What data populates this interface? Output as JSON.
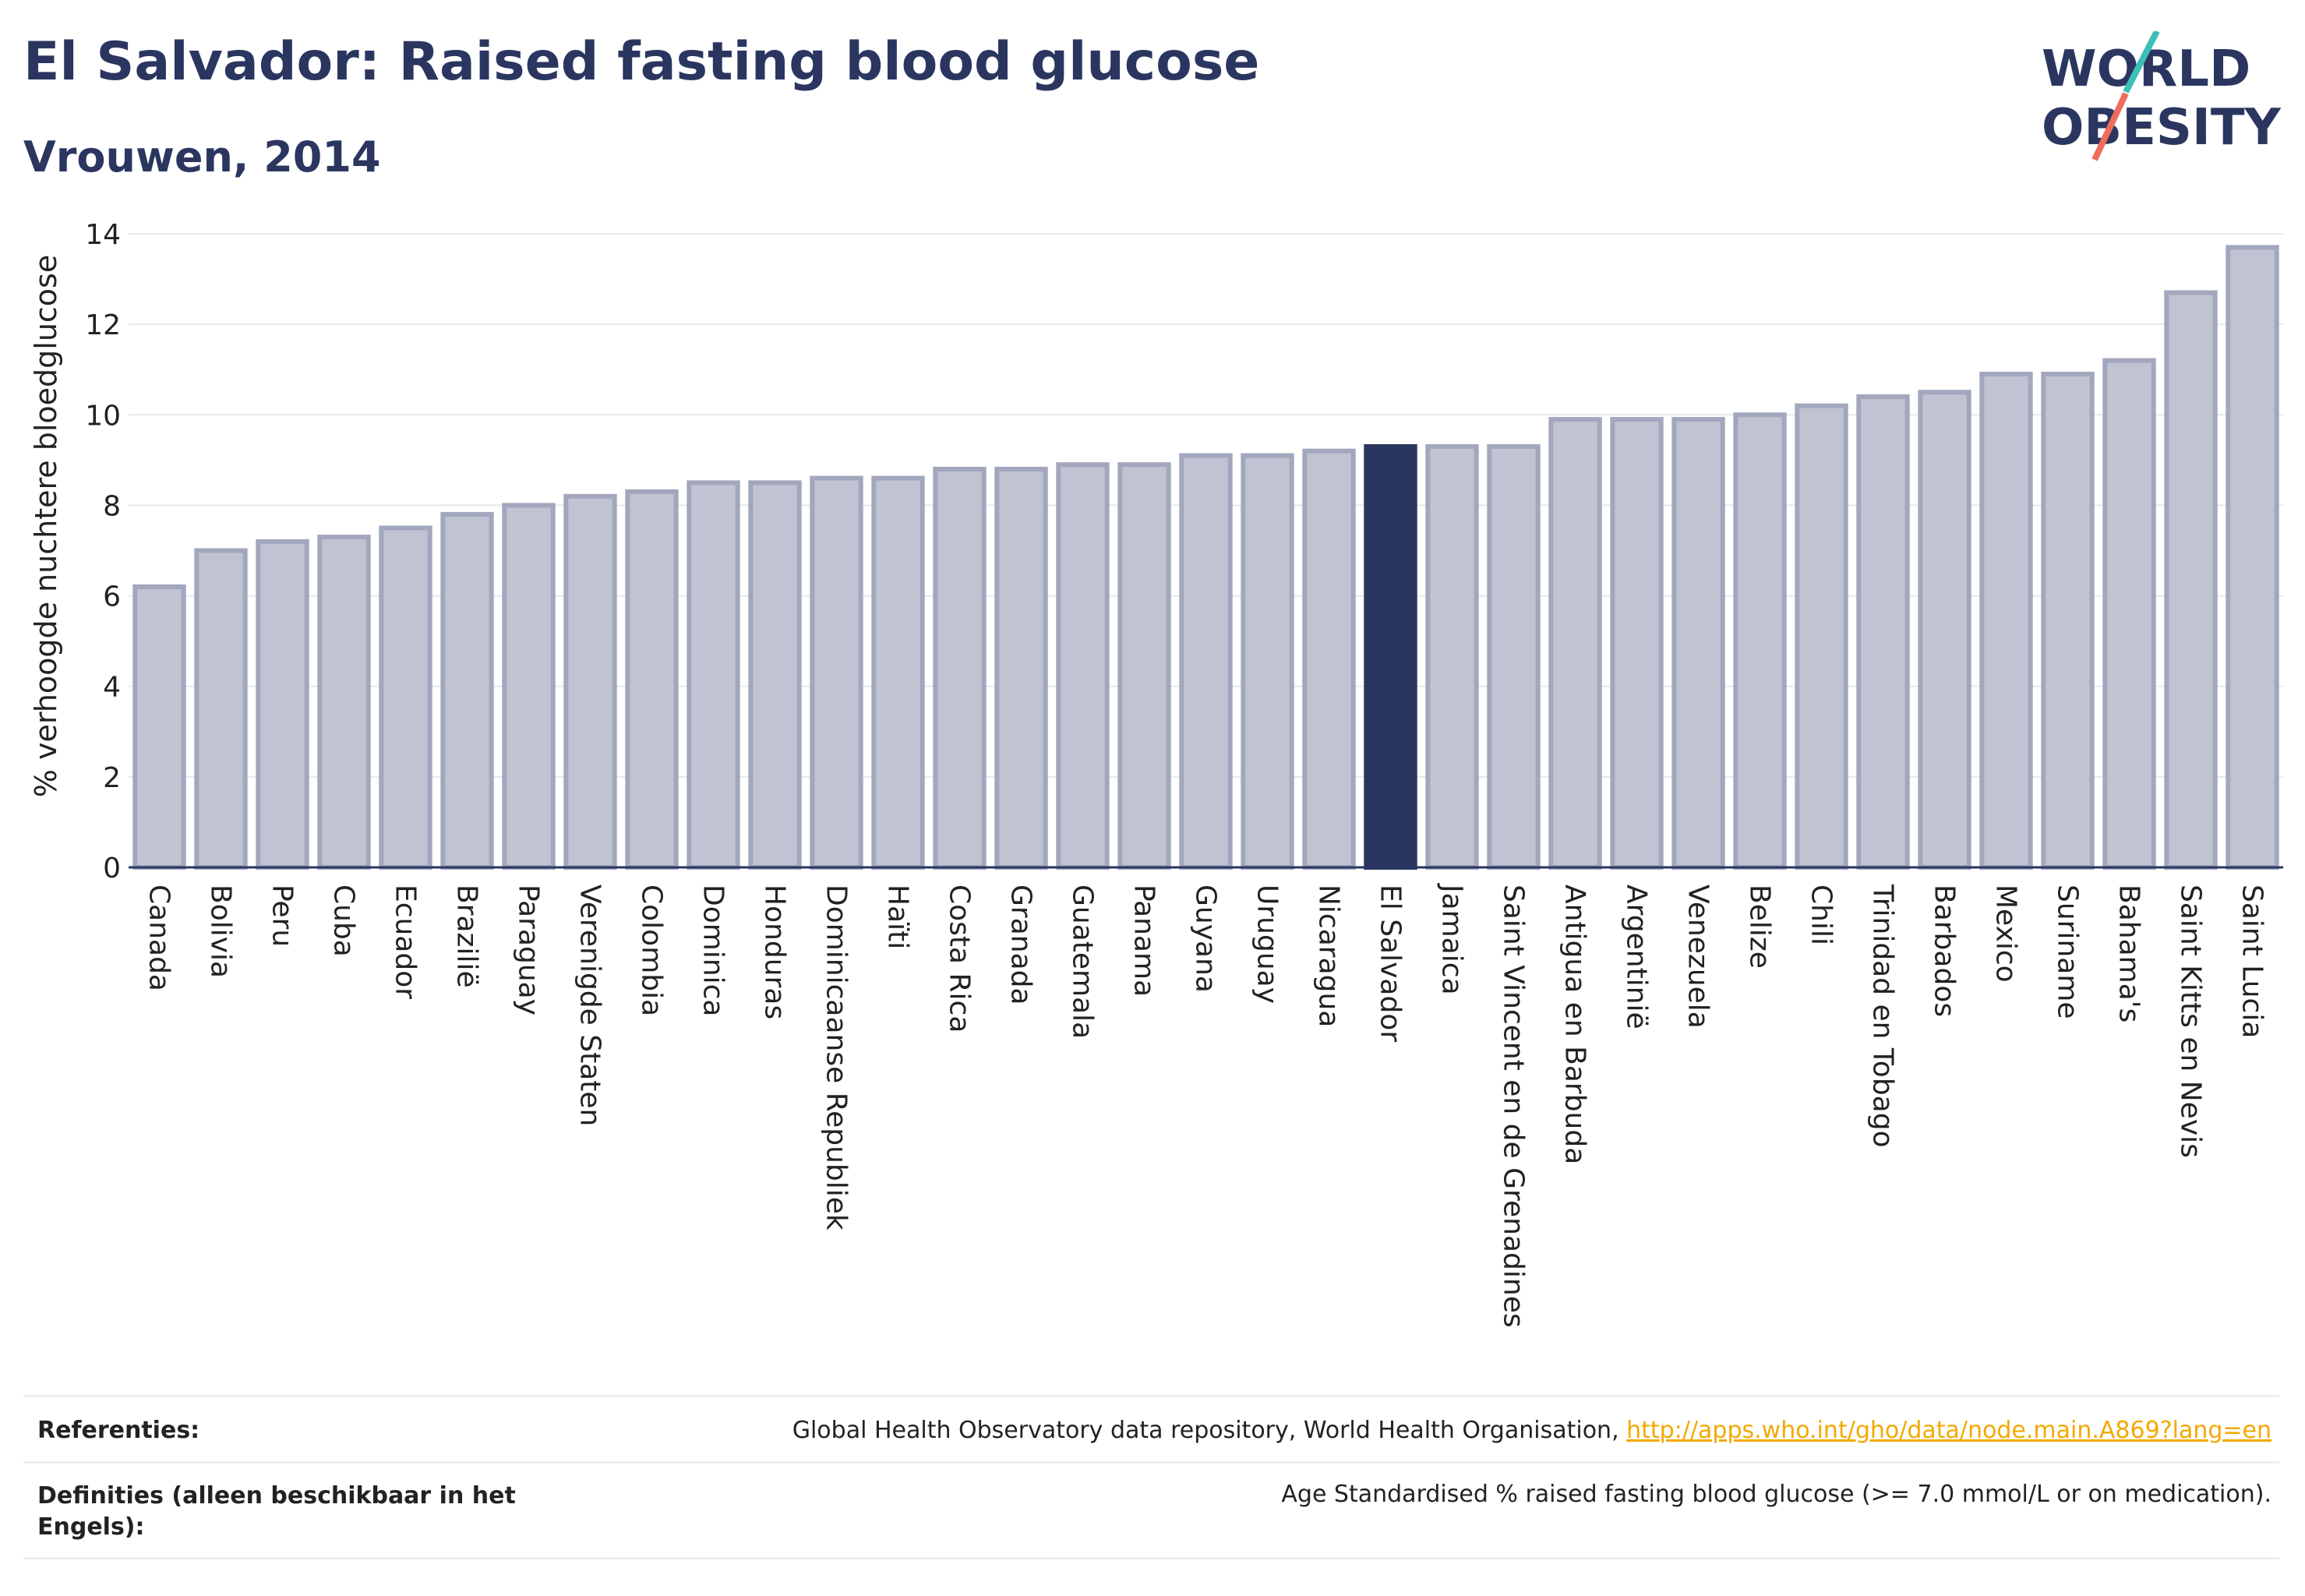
{
  "title": "El Salvador: Raised fasting blood glucose",
  "subtitle": "Vrouwen, 2014",
  "logo": {
    "line1": "WORLD",
    "line2": "OBESITY",
    "accent_teal": "#3bbfb6",
    "accent_coral": "#ef6b5b"
  },
  "colors": {
    "bar": "#c0c3d1",
    "bar_border": "#a2a7bd",
    "highlight": "#2b3660",
    "grid": "#e6e8ee",
    "axis": "#2b3660"
  },
  "chart_data": {
    "type": "bar",
    "ylabel": "% verhoogde nuchtere bloedglucose",
    "ylim": [
      0,
      14
    ],
    "yticks": [
      "0",
      "2",
      "4",
      "6",
      "8",
      "10",
      "12",
      "14"
    ],
    "highlight": "El Salvador",
    "categories": [
      "Canada",
      "Bolivia",
      "Peru",
      "Cuba",
      "Ecuador",
      "Brazilië",
      "Paraguay",
      "Verenigde Staten",
      "Colombia",
      "Dominica",
      "Honduras",
      "Dominicaanse Republiek",
      "Haïti",
      "Costa Rica",
      "Granada",
      "Guatemala",
      "Panama",
      "Guyana",
      "Uruguay",
      "Nicaragua",
      "El Salvador",
      "Jamaica",
      "Saint Vincent en de Grenadines",
      "Antigua en Barbuda",
      "Argentinië",
      "Venezuela",
      "Belize",
      "Chili",
      "Trinidad en Tobago",
      "Barbados",
      "Mexico",
      "Suriname",
      "Bahama's",
      "Saint Kitts en Nevis",
      "Saint Lucia"
    ],
    "values": [
      6.2,
      7.0,
      7.2,
      7.3,
      7.5,
      7.8,
      8.0,
      8.2,
      8.3,
      8.5,
      8.5,
      8.6,
      8.6,
      8.8,
      8.8,
      8.9,
      8.9,
      9.1,
      9.1,
      9.2,
      9.3,
      9.3,
      9.3,
      9.9,
      9.9,
      9.9,
      10.0,
      10.2,
      10.4,
      10.5,
      10.9,
      10.9,
      11.2,
      12.7,
      13.7
    ]
  },
  "footer": {
    "ref_label": "Referenties:",
    "ref_text": "Global Health Observatory data repository, World Health Organisation, ",
    "ref_link": "http://apps.who.int/gho/data/node.main.A869?lang=en",
    "def_label_1": "Definities (alleen beschikbaar in het",
    "def_label_2": "Engels):",
    "def_text": "Age Standardised % raised fasting blood glucose (>= 7.0 mmol/L or on medication)."
  }
}
